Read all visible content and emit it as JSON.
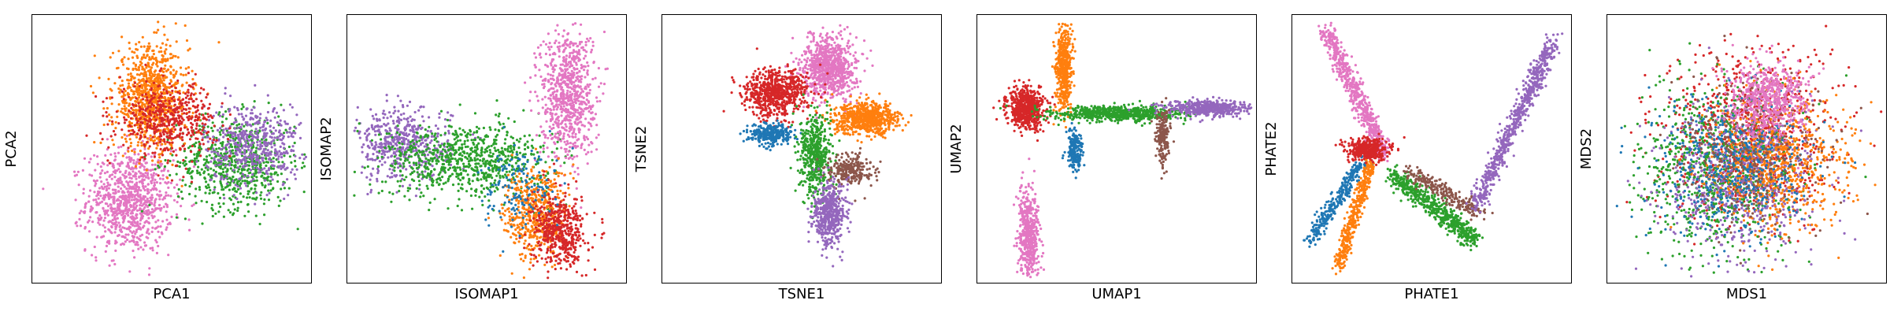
{
  "palette": {
    "blue": "#1f77b4",
    "orange": "#ff7f0e",
    "green": "#2ca02c",
    "red": "#d62728",
    "purple": "#9467bd",
    "brown": "#8c564b",
    "pink": "#e377c2"
  },
  "chart_data": [
    {
      "type": "scatter",
      "method": "PCA",
      "xlabel": "PCA1",
      "ylabel": "PCA2",
      "xlim": [
        0,
        1
      ],
      "ylim": [
        0,
        1
      ],
      "grid": false,
      "ticks": false,
      "clusters": [
        {
          "color": "pink",
          "cx": 0.34,
          "cy": 0.3,
          "sx": 0.08,
          "sy": 0.1,
          "n": 900
        },
        {
          "color": "green",
          "cx": 0.74,
          "cy": 0.45,
          "sx": 0.11,
          "sy": 0.09,
          "n": 700
        },
        {
          "color": "purple",
          "cx": 0.8,
          "cy": 0.52,
          "sx": 0.09,
          "sy": 0.08,
          "n": 500
        },
        {
          "color": "orange",
          "cx": 0.42,
          "cy": 0.7,
          "sx": 0.07,
          "sy": 0.1,
          "n": 900
        },
        {
          "color": "red",
          "cx": 0.48,
          "cy": 0.62,
          "sx": 0.09,
          "sy": 0.07,
          "n": 500
        }
      ]
    },
    {
      "type": "scatter",
      "method": "ISOMAP",
      "xlabel": "ISOMAP1",
      "ylabel": "ISOMAP2",
      "xlim": [
        0,
        1
      ],
      "ylim": [
        0,
        1
      ],
      "grid": false,
      "ticks": false,
      "clusters": [
        {
          "color": "purple",
          "cx": 0.18,
          "cy": 0.52,
          "sx": 0.09,
          "sy": 0.07,
          "n": 500
        },
        {
          "color": "green",
          "cx": 0.42,
          "cy": 0.46,
          "sx": 0.16,
          "sy": 0.07,
          "n": 800
        },
        {
          "color": "pink",
          "cx": 0.8,
          "cy": 0.72,
          "sx": 0.05,
          "sy": 0.13,
          "n": 800
        },
        {
          "color": "orange",
          "cx": 0.68,
          "cy": 0.25,
          "sx": 0.06,
          "sy": 0.09,
          "n": 500
        },
        {
          "color": "red",
          "cx": 0.77,
          "cy": 0.18,
          "sx": 0.05,
          "sy": 0.07,
          "n": 500
        },
        {
          "color": "blue",
          "cx": 0.62,
          "cy": 0.35,
          "sx": 0.07,
          "sy": 0.08,
          "n": 150
        }
      ]
    },
    {
      "type": "scatter",
      "method": "TSNE",
      "xlabel": "TSNE1",
      "ylabel": "TSNE2",
      "xlim": [
        0,
        1
      ],
      "ylim": [
        0,
        1
      ],
      "grid": false,
      "ticks": false,
      "clusters": [
        {
          "color": "pink",
          "cx": 0.6,
          "cy": 0.82,
          "sx": 0.05,
          "sy": 0.06,
          "n": 800
        },
        {
          "color": "red",
          "cx": 0.4,
          "cy": 0.72,
          "sx": 0.06,
          "sy": 0.045,
          "n": 700
        },
        {
          "color": "orange",
          "cx": 0.74,
          "cy": 0.62,
          "sx": 0.06,
          "sy": 0.03,
          "n": 700
        },
        {
          "color": "blue",
          "cx": 0.38,
          "cy": 0.56,
          "sx": 0.04,
          "sy": 0.02,
          "n": 300
        },
        {
          "color": "green",
          "cx": 0.55,
          "cy": 0.48,
          "sx": 0.03,
          "sy": 0.08,
          "n": 500
        },
        {
          "color": "brown",
          "cx": 0.68,
          "cy": 0.42,
          "sx": 0.04,
          "sy": 0.03,
          "n": 250
        },
        {
          "color": "purple",
          "cx": 0.6,
          "cy": 0.25,
          "sx": 0.03,
          "sy": 0.06,
          "n": 500
        }
      ]
    },
    {
      "type": "scatter",
      "method": "UMAP",
      "xlabel": "UMAP1",
      "ylabel": "UMAP2",
      "xlim": [
        0,
        1
      ],
      "ylim": [
        0,
        1
      ],
      "grid": false,
      "ticks": false,
      "clusters": [
        {
          "color": "red",
          "cx": 0.16,
          "cy": 0.66,
          "sx": 0.035,
          "sy": 0.04,
          "n": 600
        },
        {
          "color": "orange",
          "cx": 0.3,
          "cy": 0.82,
          "sx": 0.015,
          "sy": 0.08,
          "n": 500
        },
        {
          "color": "green",
          "cx": 0.5,
          "cy": 0.64,
          "sx": 0.12,
          "sy": 0.015,
          "n": 700
        },
        {
          "color": "purple",
          "cx": 0.84,
          "cy": 0.66,
          "sx": 0.08,
          "sy": 0.015,
          "n": 500
        },
        {
          "color": "brown",
          "cx": 0.67,
          "cy": 0.55,
          "sx": 0.012,
          "sy": 0.06,
          "n": 200
        },
        {
          "color": "blue",
          "cx": 0.34,
          "cy": 0.5,
          "sx": 0.015,
          "sy": 0.04,
          "n": 200
        },
        {
          "color": "pink",
          "cx": 0.17,
          "cy": 0.16,
          "sx": 0.02,
          "sy": 0.09,
          "n": 500
        }
      ]
    },
    {
      "type": "scatter",
      "method": "PHATE",
      "xlabel": "PHATE1",
      "ylabel": "PHATE2",
      "xlim": [
        0,
        1
      ],
      "ylim": [
        0,
        1
      ],
      "grid": false,
      "ticks": false,
      "clusters": [
        {
          "color": "pink",
          "cx": 0.18,
          "cy": 0.78,
          "sx": 0.015,
          "sy": 0.02,
          "n": 600,
          "arm": [
            0.1,
            0.97,
            0.32,
            0.48
          ]
        },
        {
          "color": "blue",
          "cx": 0.1,
          "cy": 0.25,
          "sx": 0.015,
          "sy": 0.015,
          "n": 300,
          "arm": [
            0.04,
            0.14,
            0.24,
            0.45
          ]
        },
        {
          "color": "orange",
          "cx": 0.18,
          "cy": 0.25,
          "sx": 0.012,
          "sy": 0.015,
          "n": 400,
          "arm": [
            0.15,
            0.05,
            0.27,
            0.45
          ]
        },
        {
          "color": "red",
          "cx": 0.26,
          "cy": 0.5,
          "sx": 0.04,
          "sy": 0.02,
          "n": 400
        },
        {
          "color": "green",
          "cx": 0.55,
          "cy": 0.2,
          "sx": 0.015,
          "sy": 0.02,
          "n": 600,
          "arm": [
            0.35,
            0.4,
            0.66,
            0.15
          ]
        },
        {
          "color": "brown",
          "cx": 0.55,
          "cy": 0.35,
          "sx": 0.015,
          "sy": 0.015,
          "n": 250,
          "arm": [
            0.4,
            0.42,
            0.68,
            0.25
          ]
        },
        {
          "color": "purple",
          "cx": 0.9,
          "cy": 0.65,
          "sx": 0.015,
          "sy": 0.02,
          "n": 700,
          "arm": [
            0.66,
            0.28,
            0.95,
            0.92
          ]
        }
      ]
    },
    {
      "type": "scatter",
      "method": "MDS",
      "xlabel": "MDS1",
      "ylabel": "MDS2",
      "xlim": [
        0,
        1
      ],
      "ylim": [
        0,
        1
      ],
      "grid": false,
      "ticks": false,
      "clusters": [
        {
          "color": "red",
          "cx": 0.5,
          "cy": 0.55,
          "sx": 0.16,
          "sy": 0.16,
          "n": 900
        },
        {
          "color": "green",
          "cx": 0.38,
          "cy": 0.42,
          "sx": 0.15,
          "sy": 0.16,
          "n": 800
        },
        {
          "color": "purple",
          "cx": 0.48,
          "cy": 0.38,
          "sx": 0.14,
          "sy": 0.14,
          "n": 700
        },
        {
          "color": "orange",
          "cx": 0.62,
          "cy": 0.45,
          "sx": 0.13,
          "sy": 0.14,
          "n": 700
        },
        {
          "color": "blue",
          "cx": 0.44,
          "cy": 0.44,
          "sx": 0.14,
          "sy": 0.13,
          "n": 500
        },
        {
          "color": "brown",
          "cx": 0.5,
          "cy": 0.5,
          "sx": 0.14,
          "sy": 0.14,
          "n": 300
        },
        {
          "color": "pink",
          "cx": 0.58,
          "cy": 0.7,
          "sx": 0.07,
          "sy": 0.07,
          "n": 600
        }
      ]
    }
  ]
}
